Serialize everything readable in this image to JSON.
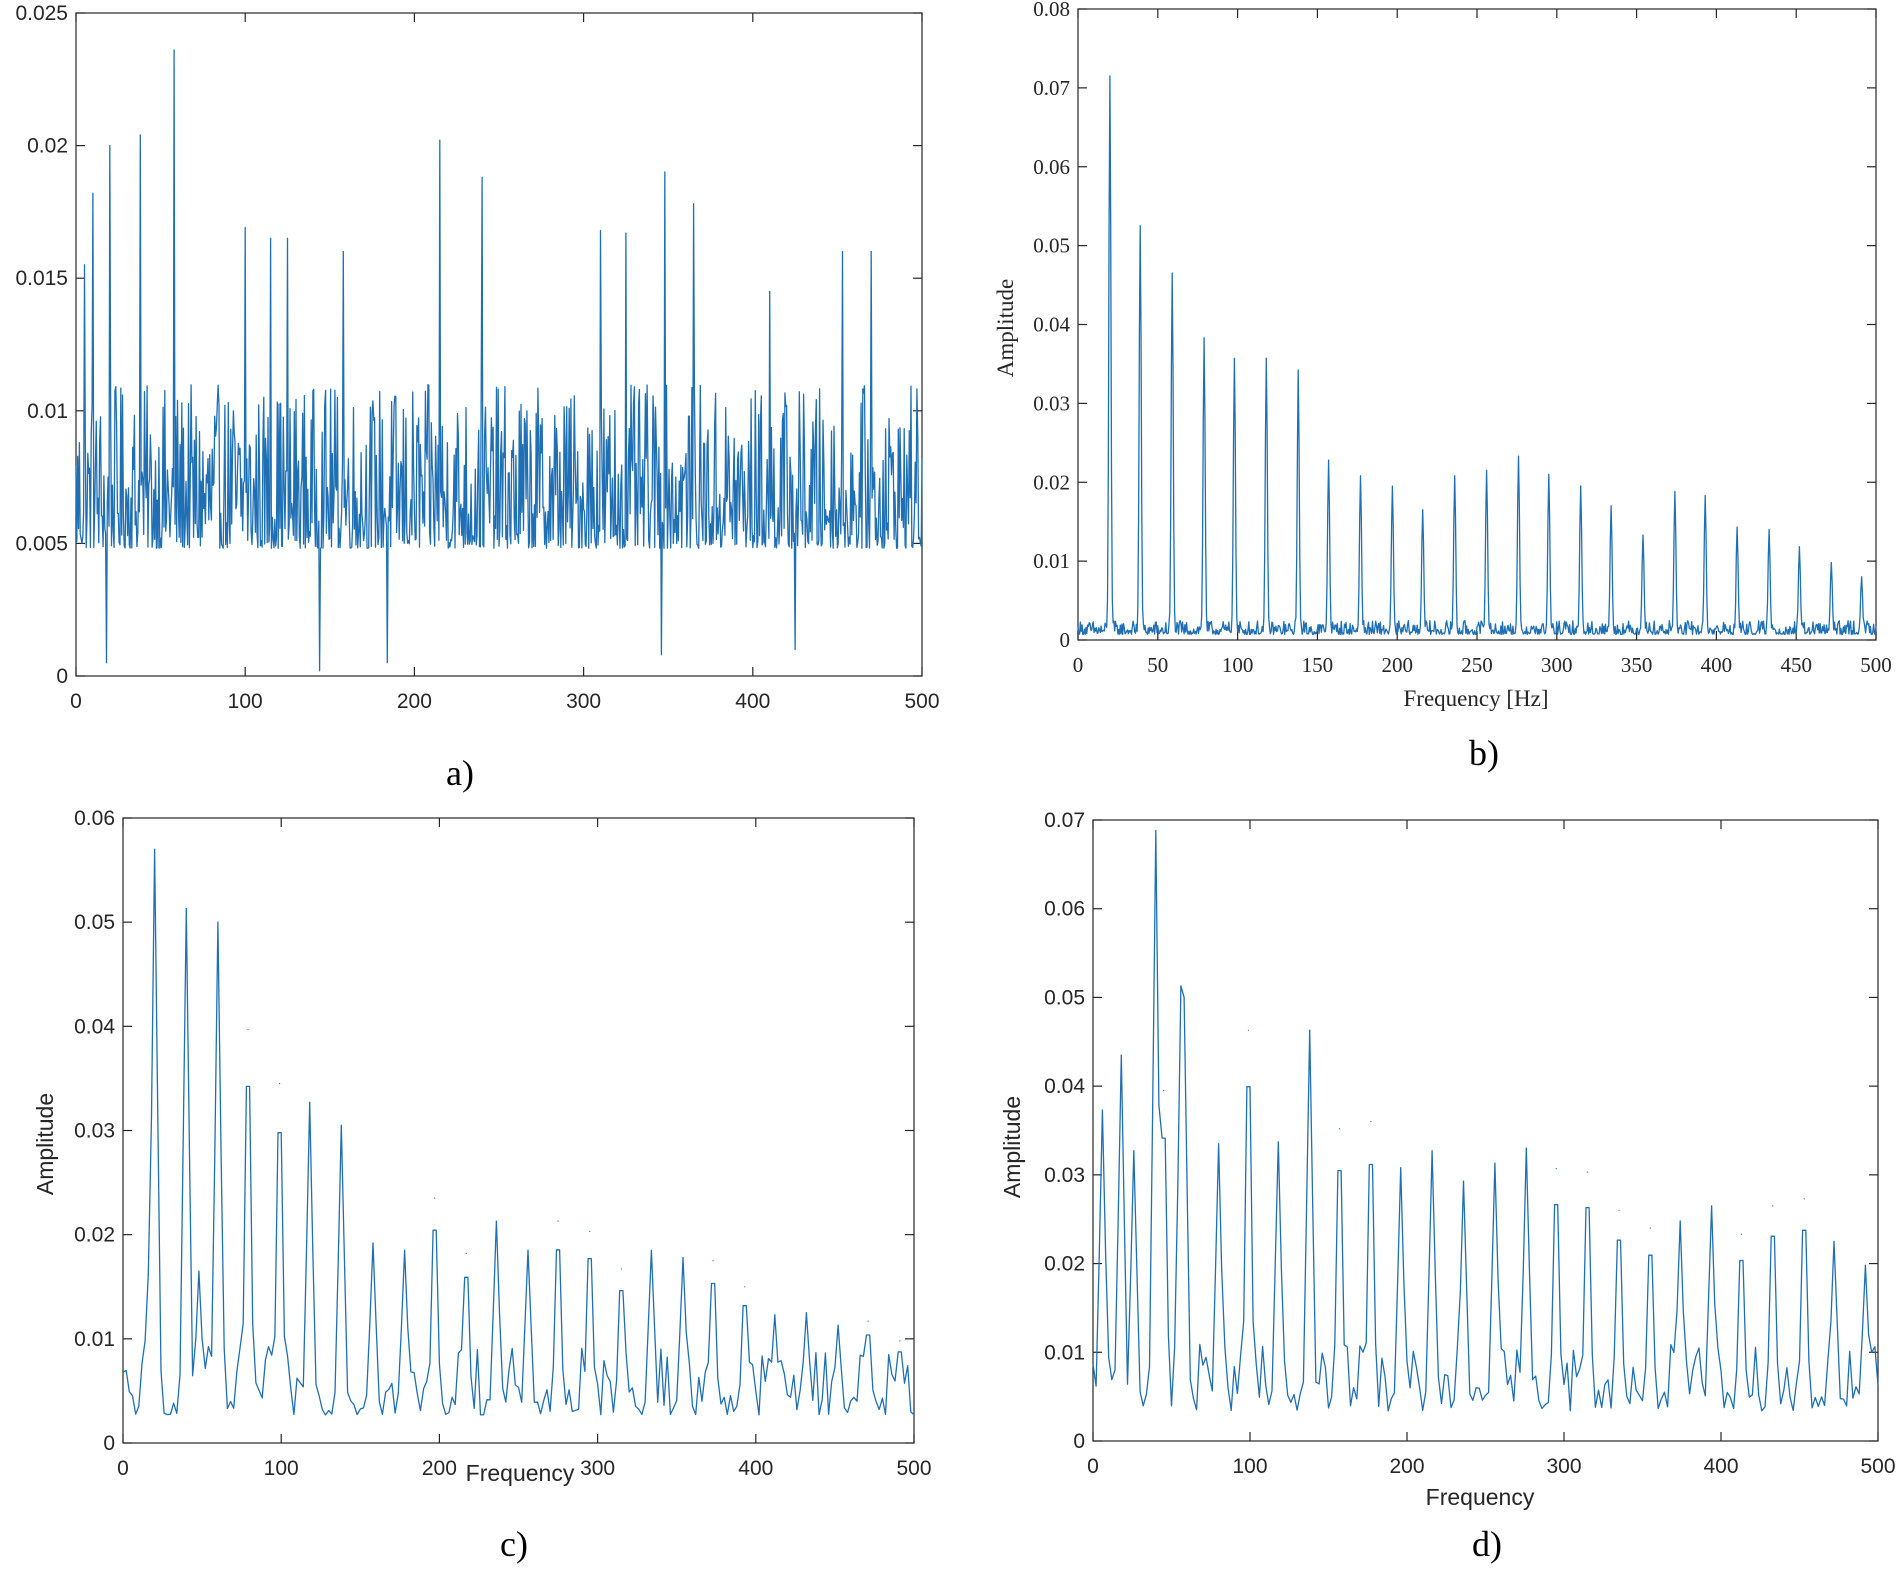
{
  "colors": {
    "line": "#1f6fb4",
    "axis": "#262626",
    "background": "#ffffff"
  },
  "chart_data": [
    {
      "id": "a",
      "type": "line",
      "caption": "a)",
      "xlabel": "",
      "ylabel": "",
      "xlim": [
        0,
        500
      ],
      "ylim": [
        0,
        0.025
      ],
      "xticks": [
        0,
        100,
        200,
        300,
        400,
        500
      ],
      "yticks": [
        0,
        0.005,
        0.01,
        0.015,
        0.02,
        0.025
      ],
      "xtick_labels": [
        "0",
        "100",
        "200",
        "300",
        "400",
        "500"
      ],
      "ytick_labels": [
        "0",
        "0.005",
        "0.01",
        "0.015",
        "0.02",
        "0.025"
      ],
      "grid": false,
      "series": [
        {
          "dx": 0.5,
          "x_start": 0,
          "baseline": 0.0065,
          "noise": 0.0028,
          "peaks": [
            [
              5,
              0.0155
            ],
            [
              10,
              0.0182
            ],
            [
              20,
              0.02
            ],
            [
              38,
              0.0204
            ],
            [
              58,
              0.0236
            ],
            [
              100,
              0.0169
            ],
            [
              115,
              0.0165
            ],
            [
              125,
              0.0165
            ],
            [
              158,
              0.016
            ],
            [
              215,
              0.0202
            ],
            [
              240,
              0.0188
            ],
            [
              310,
              0.0168
            ],
            [
              325,
              0.0167
            ],
            [
              348,
              0.019
            ],
            [
              365,
              0.0178
            ],
            [
              410,
              0.0145
            ],
            [
              453,
              0.016
            ],
            [
              470,
              0.016
            ]
          ],
          "dips": [
            [
              18,
              0.0005
            ],
            [
              144,
              0.0002
            ],
            [
              184,
              0.0005
            ],
            [
              346,
              0.0008
            ],
            [
              425,
              0.001
            ]
          ]
        }
      ]
    },
    {
      "id": "b",
      "type": "line",
      "caption": "b)",
      "xlabel": "Frequency [Hz]",
      "ylabel": "Amplitude",
      "xlim": [
        0,
        500
      ],
      "ylim": [
        0,
        0.08
      ],
      "xticks": [
        0,
        50,
        100,
        150,
        200,
        250,
        300,
        350,
        400,
        450,
        500
      ],
      "yticks": [
        0,
        0.01,
        0.02,
        0.03,
        0.04,
        0.05,
        0.06,
        0.07,
        0.08
      ],
      "xtick_labels": [
        "0",
        "50",
        "100",
        "150",
        "200",
        "250",
        "300",
        "350",
        "400",
        "450",
        "500"
      ],
      "ytick_labels": [
        "0",
        "0.01",
        "0.02",
        "0.03",
        "0.04",
        "0.05",
        "0.06",
        "0.07",
        "0.08"
      ],
      "grid": false,
      "series": [
        {
          "dx": 0.5,
          "x_start": 0,
          "baseline": 0.0012,
          "noise": 0.0008,
          "peak_width": 0.9,
          "peaks": [
            [
              20,
              0.0715
            ],
            [
              39,
              0.0525
            ],
            [
              59,
              0.0465
            ],
            [
              79,
              0.0383
            ],
            [
              98,
              0.0357
            ],
            [
              118,
              0.0357
            ],
            [
              138,
              0.0342
            ],
            [
              157,
              0.0228
            ],
            [
              177,
              0.0208
            ],
            [
              197,
              0.0195
            ],
            [
              216,
              0.0165
            ],
            [
              236,
              0.0208
            ],
            [
              256,
              0.0215
            ],
            [
              276,
              0.0233
            ],
            [
              295,
              0.021
            ],
            [
              315,
              0.0195
            ],
            [
              334,
              0.017
            ],
            [
              354,
              0.0133
            ],
            [
              374,
              0.0188
            ],
            [
              393,
              0.0183
            ],
            [
              413,
              0.0143
            ],
            [
              433,
              0.014
            ],
            [
              452,
              0.0118
            ],
            [
              472,
              0.0098
            ],
            [
              491,
              0.008
            ]
          ]
        }
      ]
    },
    {
      "id": "c",
      "type": "line",
      "caption": "c)",
      "xlabel": "Frequency",
      "ylabel": "Amplitude",
      "xlim": [
        0,
        500
      ],
      "ylim": [
        0,
        0.06
      ],
      "xticks": [
        0,
        100,
        200,
        300,
        400,
        500
      ],
      "yticks": [
        0,
        0.01,
        0.02,
        0.03,
        0.04,
        0.05,
        0.06
      ],
      "xtick_labels": [
        "0",
        "100",
        "200",
        "300",
        "400",
        "500"
      ],
      "ytick_labels": [
        "0",
        "0.01",
        "0.02",
        "0.03",
        "0.04",
        "0.05",
        "0.06"
      ],
      "grid": false,
      "series": [
        {
          "dx": 2,
          "x_start": 0,
          "baseline": 0.0045,
          "noise": 0.003,
          "peak_width": 2.5,
          "peaks": [
            [
              20,
              0.057
            ],
            [
              40,
              0.0513
            ],
            [
              60,
              0.05
            ],
            [
              79,
              0.0397
            ],
            [
              99,
              0.0345
            ],
            [
              118,
              0.0327
            ],
            [
              138,
              0.0305
            ],
            [
              158,
              0.0192
            ],
            [
              178,
              0.0185
            ],
            [
              197,
              0.0235
            ],
            [
              217,
              0.0182
            ],
            [
              236,
              0.0213
            ],
            [
              256,
              0.0185
            ],
            [
              275,
              0.0213
            ],
            [
              295,
              0.0203
            ],
            [
              315,
              0.0167
            ],
            [
              334,
              0.0185
            ],
            [
              354,
              0.0178
            ],
            [
              373,
              0.0175
            ],
            [
              393,
              0.015
            ],
            [
              412,
              0.0123
            ],
            [
              432,
              0.0125
            ],
            [
              452,
              0.0113
            ],
            [
              471,
              0.0117
            ],
            [
              491,
              0.0098
            ],
            [
              16,
              0.0162
            ],
            [
              48,
              0.0165
            ]
          ]
        }
      ]
    },
    {
      "id": "d",
      "type": "line",
      "caption": "d)",
      "xlabel": "Frequency",
      "ylabel": "Amplitude",
      "xlim": [
        0,
        500
      ],
      "ylim": [
        0,
        0.07
      ],
      "xticks": [
        0,
        100,
        200,
        300,
        400,
        500
      ],
      "yticks": [
        0,
        0.01,
        0.02,
        0.03,
        0.04,
        0.05,
        0.06,
        0.07
      ],
      "xtick_labels": [
        "0",
        "100",
        "200",
        "300",
        "400",
        "500"
      ],
      "ytick_labels": [
        "0",
        "0.01",
        "0.02",
        "0.03",
        "0.04",
        "0.05",
        "0.06",
        "0.07"
      ],
      "grid": false,
      "series": [
        {
          "dx": 2,
          "x_start": 0,
          "baseline": 0.0055,
          "noise": 0.0035,
          "peak_width": 2.5,
          "peaks": [
            [
              6,
              0.0373
            ],
            [
              18,
              0.0435
            ],
            [
              26,
              0.0327
            ],
            [
              40,
              0.0688
            ],
            [
              45,
              0.0395
            ],
            [
              56,
              0.0513
            ],
            [
              58,
              0.05
            ],
            [
              80,
              0.0335
            ],
            [
              99,
              0.0463
            ],
            [
              118,
              0.0337
            ],
            [
              138,
              0.0463
            ],
            [
              157,
              0.0352
            ],
            [
              177,
              0.036
            ],
            [
              196,
              0.0308
            ],
            [
              216,
              0.0327
            ],
            [
              236,
              0.0293
            ],
            [
              256,
              0.0313
            ],
            [
              276,
              0.033
            ],
            [
              295,
              0.0307
            ],
            [
              315,
              0.0303
            ],
            [
              335,
              0.026
            ],
            [
              355,
              0.024
            ],
            [
              374,
              0.0248
            ],
            [
              394,
              0.0265
            ],
            [
              413,
              0.0233
            ],
            [
              433,
              0.0265
            ],
            [
              453,
              0.0273
            ],
            [
              472,
              0.0225
            ],
            [
              492,
              0.0198
            ]
          ]
        }
      ]
    }
  ]
}
